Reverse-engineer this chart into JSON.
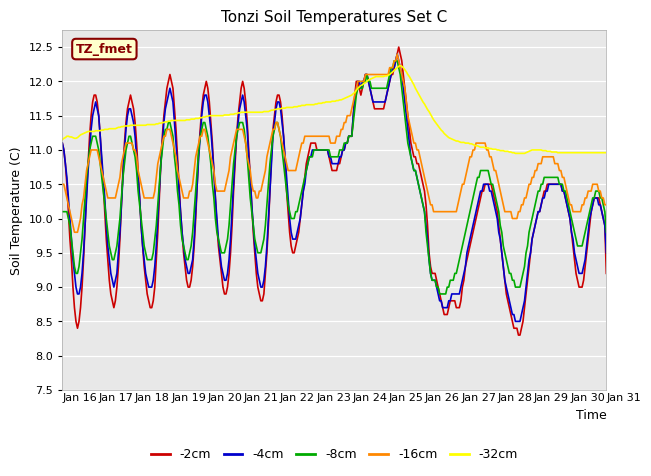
{
  "title": "Tonzi Soil Temperatures Set C",
  "xlabel": "Time",
  "ylabel": "Soil Temperature (C)",
  "ylim": [
    7.5,
    12.75
  ],
  "yticks": [
    7.5,
    8.0,
    8.5,
    9.0,
    9.5,
    10.0,
    10.5,
    11.0,
    11.5,
    12.0,
    12.5
  ],
  "xtick_labels": [
    "Jan 16",
    "Jan 17",
    "Jan 18",
    "Jan 19",
    "Jan 20",
    "Jan 21",
    "Jan 22",
    "Jan 23",
    "Jan 24",
    "Jan 25",
    "Jan 26",
    "Jan 27",
    "Jan 28",
    "Jan 29",
    "Jan 30",
    "Jan 31"
  ],
  "bg_color": "#e8e8e8",
  "legend_label_box": "TZ_fmet",
  "legend_box_color": "#ffffcc",
  "legend_box_edge": "#880000",
  "series_colors": [
    "#cc0000",
    "#0000cc",
    "#00aa00",
    "#ff8800",
    "#ffff00"
  ],
  "series_labels": [
    "-2cm",
    "-4cm",
    "-8cm",
    "-16cm",
    "-32cm"
  ],
  "line_width": 1.2,
  "n_points": 360,
  "t_2cm": [
    11.1,
    11.0,
    10.8,
    10.5,
    10.1,
    9.7,
    9.4,
    9.0,
    8.7,
    8.5,
    8.4,
    8.5,
    8.7,
    9.0,
    9.4,
    9.9,
    10.4,
    10.8,
    11.2,
    11.5,
    11.7,
    11.8,
    11.8,
    11.7,
    11.5,
    11.2,
    10.8,
    10.5,
    10.1,
    9.7,
    9.4,
    9.1,
    8.9,
    8.8,
    8.7,
    8.8,
    9.0,
    9.3,
    9.7,
    10.2,
    10.7,
    11.1,
    11.4,
    11.6,
    11.7,
    11.8,
    11.7,
    11.6,
    11.4,
    11.1,
    10.7,
    10.3,
    9.9,
    9.6,
    9.3,
    9.1,
    8.9,
    8.8,
    8.7,
    8.7,
    8.8,
    9.0,
    9.4,
    9.8,
    10.3,
    10.8,
    11.2,
    11.5,
    11.7,
    11.9,
    12.0,
    12.1,
    12.0,
    11.9,
    11.6,
    11.3,
    10.9,
    10.5,
    10.1,
    9.8,
    9.5,
    9.3,
    9.1,
    9.0,
    9.0,
    9.1,
    9.3,
    9.6,
    10.0,
    10.5,
    11.0,
    11.3,
    11.6,
    11.8,
    11.9,
    12.0,
    11.9,
    11.7,
    11.4,
    11.1,
    10.7,
    10.3,
    9.9,
    9.6,
    9.4,
    9.2,
    9.0,
    8.9,
    8.9,
    9.0,
    9.2,
    9.5,
    9.9,
    10.4,
    10.8,
    11.2,
    11.5,
    11.7,
    11.9,
    12.0,
    11.9,
    11.7,
    11.4,
    11.0,
    10.6,
    10.2,
    9.8,
    9.5,
    9.2,
    9.0,
    8.9,
    8.8,
    8.8,
    8.9,
    9.2,
    9.5,
    9.9,
    10.4,
    10.9,
    11.3,
    11.5,
    11.7,
    11.8,
    11.8,
    11.7,
    11.5,
    11.2,
    10.8,
    10.4,
    10.1,
    9.8,
    9.6,
    9.5,
    9.5,
    9.6,
    9.7,
    9.8,
    10.0,
    10.2,
    10.4,
    10.6,
    10.8,
    10.9,
    11.0,
    11.1,
    11.1,
    11.1,
    11.1,
    11.0,
    11.0,
    11.0,
    11.0,
    11.0,
    11.0,
    11.0,
    11.0,
    10.9,
    10.8,
    10.7,
    10.7,
    10.7,
    10.7,
    10.8,
    10.8,
    10.9,
    11.0,
    11.0,
    11.1,
    11.1,
    11.2,
    11.2,
    11.2,
    11.5,
    11.8,
    12.0,
    12.0,
    11.9,
    11.8,
    11.9,
    12.0,
    12.1,
    12.1,
    12.0,
    11.9,
    11.8,
    11.7,
    11.6,
    11.6,
    11.6,
    11.6,
    11.6,
    11.6,
    11.6,
    11.7,
    11.8,
    11.9,
    12.0,
    12.1,
    12.1,
    12.2,
    12.3,
    12.4,
    12.5,
    12.4,
    12.3,
    12.1,
    11.9,
    11.7,
    11.5,
    11.3,
    11.1,
    11.0,
    10.9,
    10.9,
    10.8,
    10.8,
    10.7,
    10.6,
    10.5,
    10.4,
    10.2,
    9.9,
    9.5,
    9.3,
    9.2,
    9.2,
    9.2,
    9.1,
    9.0,
    8.9,
    8.8,
    8.7,
    8.6,
    8.6,
    8.6,
    8.7,
    8.8,
    8.8,
    8.8,
    8.8,
    8.7,
    8.7,
    8.7,
    8.8,
    9.0,
    9.1,
    9.3,
    9.4,
    9.5,
    9.6,
    9.7,
    9.8,
    9.9,
    10.0,
    10.1,
    10.2,
    10.3,
    10.4,
    10.4,
    10.5,
    10.5,
    10.5,
    10.5,
    10.5,
    10.4,
    10.3,
    10.2,
    10.1,
    9.9,
    9.7,
    9.5,
    9.3,
    9.1,
    8.9,
    8.8,
    8.7,
    8.6,
    8.5,
    8.4,
    8.4,
    8.4,
    8.3,
    8.3,
    8.4,
    8.5,
    8.7,
    8.9,
    9.1,
    9.3,
    9.5,
    9.7,
    9.8,
    9.9,
    10.0,
    10.1,
    10.1,
    10.2,
    10.3,
    10.4,
    10.4,
    10.5,
    10.5,
    10.5,
    10.5,
    10.5,
    10.5,
    10.5,
    10.5,
    10.5,
    10.5,
    10.4,
    10.4,
    10.3,
    10.2,
    10.1,
    10.0,
    9.8,
    9.6,
    9.4,
    9.2,
    9.1,
    9.0,
    9.0,
    9.0,
    9.1,
    9.3,
    9.5,
    9.7,
    9.9,
    10.1,
    10.2,
    10.3,
    10.3,
    10.3,
    10.3,
    10.2,
    10.1,
    10.0,
    9.9,
    9.2
  ],
  "t_4cm": [
    11.1,
    11.0,
    10.8,
    10.6,
    10.3,
    10.0,
    9.7,
    9.4,
    9.2,
    9.0,
    8.9,
    8.9,
    9.0,
    9.2,
    9.5,
    9.9,
    10.3,
    10.7,
    11.0,
    11.3,
    11.5,
    11.6,
    11.7,
    11.6,
    11.5,
    11.2,
    10.9,
    10.6,
    10.3,
    9.9,
    9.6,
    9.4,
    9.2,
    9.1,
    9.0,
    9.1,
    9.2,
    9.5,
    9.8,
    10.2,
    10.6,
    11.0,
    11.3,
    11.5,
    11.6,
    11.6,
    11.5,
    11.4,
    11.2,
    10.9,
    10.6,
    10.3,
    9.9,
    9.6,
    9.4,
    9.2,
    9.1,
    9.0,
    9.0,
    9.0,
    9.1,
    9.3,
    9.6,
    10.0,
    10.4,
    10.8,
    11.1,
    11.4,
    11.6,
    11.7,
    11.8,
    11.9,
    11.8,
    11.7,
    11.4,
    11.1,
    10.8,
    10.4,
    10.1,
    9.8,
    9.6,
    9.4,
    9.3,
    9.2,
    9.2,
    9.3,
    9.4,
    9.7,
    10.1,
    10.5,
    10.9,
    11.2,
    11.5,
    11.7,
    11.8,
    11.8,
    11.7,
    11.5,
    11.3,
    11.0,
    10.7,
    10.3,
    10.0,
    9.7,
    9.5,
    9.3,
    9.2,
    9.1,
    9.1,
    9.2,
    9.4,
    9.7,
    10.1,
    10.5,
    10.9,
    11.2,
    11.4,
    11.6,
    11.7,
    11.8,
    11.7,
    11.5,
    11.3,
    10.9,
    10.6,
    10.2,
    9.9,
    9.6,
    9.4,
    9.2,
    9.1,
    9.0,
    9.0,
    9.1,
    9.3,
    9.6,
    10.0,
    10.4,
    10.8,
    11.2,
    11.4,
    11.6,
    11.7,
    11.7,
    11.6,
    11.4,
    11.2,
    10.9,
    10.6,
    10.3,
    10.0,
    9.8,
    9.7,
    9.7,
    9.7,
    9.8,
    9.9,
    10.0,
    10.2,
    10.4,
    10.5,
    10.7,
    10.8,
    10.9,
    10.9,
    11.0,
    11.0,
    11.0,
    11.0,
    11.0,
    11.0,
    11.0,
    11.0,
    11.0,
    11.0,
    11.0,
    10.9,
    10.9,
    10.8,
    10.8,
    10.8,
    10.8,
    10.8,
    10.9,
    10.9,
    11.0,
    11.0,
    11.1,
    11.1,
    11.2,
    11.2,
    11.2,
    11.5,
    11.7,
    11.9,
    12.0,
    12.0,
    11.9,
    12.0,
    12.0,
    12.1,
    12.1,
    12.0,
    11.9,
    11.8,
    11.7,
    11.7,
    11.7,
    11.7,
    11.7,
    11.7,
    11.7,
    11.7,
    11.7,
    11.8,
    11.9,
    12.0,
    12.1,
    12.2,
    12.2,
    12.3,
    12.4,
    12.3,
    12.2,
    12.1,
    11.9,
    11.7,
    11.5,
    11.3,
    11.1,
    10.9,
    10.8,
    10.7,
    10.7,
    10.6,
    10.5,
    10.4,
    10.3,
    10.2,
    10.1,
    9.9,
    9.7,
    9.4,
    9.2,
    9.1,
    9.1,
    9.1,
    9.0,
    8.9,
    8.8,
    8.8,
    8.7,
    8.7,
    8.7,
    8.7,
    8.8,
    8.8,
    8.9,
    8.9,
    8.9,
    8.9,
    8.9,
    8.9,
    9.0,
    9.1,
    9.2,
    9.3,
    9.5,
    9.6,
    9.7,
    9.8,
    9.9,
    10.0,
    10.1,
    10.2,
    10.3,
    10.4,
    10.4,
    10.5,
    10.5,
    10.5,
    10.5,
    10.4,
    10.4,
    10.3,
    10.2,
    10.1,
    10.0,
    9.8,
    9.7,
    9.5,
    9.3,
    9.1,
    9.0,
    8.9,
    8.8,
    8.7,
    8.6,
    8.6,
    8.5,
    8.5,
    8.5,
    8.5,
    8.6,
    8.7,
    8.8,
    9.0,
    9.2,
    9.4,
    9.5,
    9.7,
    9.8,
    9.9,
    10.0,
    10.1,
    10.1,
    10.2,
    10.3,
    10.3,
    10.4,
    10.4,
    10.5,
    10.5,
    10.5,
    10.5,
    10.5,
    10.5,
    10.5,
    10.5,
    10.5,
    10.4,
    10.4,
    10.3,
    10.2,
    10.1,
    10.0,
    9.8,
    9.7,
    9.5,
    9.4,
    9.3,
    9.2,
    9.2,
    9.2,
    9.3,
    9.4,
    9.6,
    9.8,
    10.0,
    10.1,
    10.2,
    10.3,
    10.3,
    10.3,
    10.2,
    10.2,
    10.1,
    10.0,
    9.9,
    9.5
  ],
  "t_8cm": [
    10.1,
    10.1,
    10.1,
    10.1,
    10.0,
    9.9,
    9.7,
    9.5,
    9.3,
    9.2,
    9.2,
    9.3,
    9.5,
    9.7,
    10.0,
    10.3,
    10.6,
    10.8,
    11.0,
    11.1,
    11.2,
    11.2,
    11.2,
    11.1,
    11.0,
    10.8,
    10.6,
    10.4,
    10.2,
    10.0,
    9.8,
    9.6,
    9.5,
    9.4,
    9.4,
    9.5,
    9.6,
    9.8,
    10.0,
    10.3,
    10.6,
    10.8,
    11.0,
    11.1,
    11.2,
    11.2,
    11.1,
    11.0,
    10.9,
    10.7,
    10.4,
    10.2,
    10.0,
    9.8,
    9.6,
    9.5,
    9.4,
    9.4,
    9.4,
    9.4,
    9.5,
    9.7,
    9.9,
    10.2,
    10.5,
    10.8,
    11.0,
    11.2,
    11.3,
    11.3,
    11.4,
    11.4,
    11.3,
    11.2,
    10.9,
    10.7,
    10.4,
    10.2,
    9.9,
    9.7,
    9.6,
    9.5,
    9.4,
    9.4,
    9.5,
    9.6,
    9.8,
    10.1,
    10.4,
    10.7,
    11.0,
    11.2,
    11.3,
    11.4,
    11.4,
    11.3,
    11.2,
    11.0,
    10.8,
    10.5,
    10.3,
    10.0,
    9.8,
    9.7,
    9.6,
    9.5,
    9.5,
    9.5,
    9.6,
    9.7,
    9.9,
    10.2,
    10.5,
    10.8,
    11.0,
    11.2,
    11.3,
    11.4,
    11.4,
    11.4,
    11.3,
    11.1,
    10.9,
    10.6,
    10.3,
    10.1,
    9.9,
    9.7,
    9.6,
    9.5,
    9.5,
    9.5,
    9.6,
    9.7,
    9.9,
    10.2,
    10.5,
    10.8,
    11.0,
    11.2,
    11.3,
    11.4,
    11.4,
    11.3,
    11.2,
    11.0,
    10.8,
    10.6,
    10.4,
    10.2,
    10.1,
    10.0,
    10.0,
    10.0,
    10.1,
    10.1,
    10.2,
    10.3,
    10.4,
    10.5,
    10.6,
    10.7,
    10.8,
    10.9,
    10.9,
    10.9,
    11.0,
    11.0,
    11.0,
    11.0,
    11.0,
    11.0,
    11.0,
    11.0,
    11.0,
    11.0,
    11.0,
    10.9,
    10.9,
    10.9,
    10.9,
    10.9,
    10.9,
    11.0,
    11.0,
    11.0,
    11.1,
    11.1,
    11.1,
    11.2,
    11.2,
    11.2,
    11.4,
    11.6,
    11.8,
    11.9,
    11.9,
    11.9,
    11.9,
    12.0,
    12.0,
    12.1,
    12.0,
    12.0,
    11.9,
    11.9,
    11.9,
    11.9,
    11.9,
    11.9,
    11.9,
    11.9,
    11.9,
    11.9,
    11.9,
    12.0,
    12.1,
    12.2,
    12.2,
    12.3,
    12.3,
    12.3,
    12.2,
    12.1,
    11.9,
    11.7,
    11.5,
    11.3,
    11.1,
    11.0,
    10.9,
    10.8,
    10.7,
    10.7,
    10.6,
    10.5,
    10.4,
    10.3,
    10.2,
    10.1,
    9.8,
    9.6,
    9.4,
    9.2,
    9.1,
    9.1,
    9.1,
    9.0,
    9.0,
    8.9,
    8.9,
    8.9,
    8.9,
    8.9,
    9.0,
    9.0,
    9.1,
    9.1,
    9.1,
    9.2,
    9.2,
    9.3,
    9.4,
    9.5,
    9.6,
    9.7,
    9.8,
    9.9,
    10.0,
    10.1,
    10.2,
    10.3,
    10.4,
    10.5,
    10.6,
    10.6,
    10.7,
    10.7,
    10.7,
    10.7,
    10.7,
    10.7,
    10.6,
    10.5,
    10.5,
    10.4,
    10.3,
    10.2,
    10.1,
    9.9,
    9.8,
    9.6,
    9.5,
    9.4,
    9.3,
    9.2,
    9.2,
    9.1,
    9.1,
    9.0,
    9.0,
    9.0,
    9.0,
    9.1,
    9.2,
    9.3,
    9.5,
    9.6,
    9.8,
    9.9,
    10.0,
    10.1,
    10.2,
    10.3,
    10.4,
    10.4,
    10.5,
    10.5,
    10.6,
    10.6,
    10.6,
    10.6,
    10.6,
    10.6,
    10.6,
    10.6,
    10.6,
    10.6,
    10.5,
    10.5,
    10.5,
    10.4,
    10.4,
    10.3,
    10.2,
    10.1,
    10.0,
    9.9,
    9.8,
    9.7,
    9.6,
    9.6,
    9.6,
    9.6,
    9.7,
    9.8,
    9.9,
    10.0,
    10.1,
    10.2,
    10.3,
    10.3,
    10.4,
    10.4,
    10.4,
    10.3,
    10.3,
    10.2,
    10.1,
    9.8
  ],
  "t_16cm": [
    10.5,
    10.5,
    10.4,
    10.3,
    10.2,
    10.1,
    10.0,
    9.9,
    9.8,
    9.8,
    9.8,
    9.9,
    10.0,
    10.2,
    10.3,
    10.5,
    10.7,
    10.8,
    10.9,
    11.0,
    11.0,
    11.0,
    11.0,
    11.0,
    10.9,
    10.8,
    10.7,
    10.6,
    10.5,
    10.4,
    10.3,
    10.3,
    10.3,
    10.3,
    10.3,
    10.3,
    10.4,
    10.5,
    10.6,
    10.8,
    10.9,
    11.0,
    11.1,
    11.1,
    11.1,
    11.1,
    11.1,
    11.0,
    11.0,
    10.9,
    10.7,
    10.6,
    10.5,
    10.4,
    10.3,
    10.3,
    10.3,
    10.3,
    10.3,
    10.3,
    10.3,
    10.4,
    10.6,
    10.8,
    10.9,
    11.0,
    11.1,
    11.2,
    11.2,
    11.3,
    11.3,
    11.3,
    11.2,
    11.1,
    11.0,
    10.9,
    10.7,
    10.6,
    10.5,
    10.4,
    10.3,
    10.3,
    10.3,
    10.3,
    10.4,
    10.4,
    10.5,
    10.7,
    10.9,
    11.0,
    11.1,
    11.2,
    11.2,
    11.3,
    11.3,
    11.2,
    11.1,
    11.0,
    10.9,
    10.8,
    10.7,
    10.5,
    10.4,
    10.4,
    10.4,
    10.4,
    10.4,
    10.4,
    10.5,
    10.6,
    10.7,
    10.9,
    11.0,
    11.1,
    11.2,
    11.3,
    11.3,
    11.3,
    11.3,
    11.3,
    11.2,
    11.1,
    10.9,
    10.8,
    10.7,
    10.5,
    10.4,
    10.4,
    10.3,
    10.3,
    10.4,
    10.4,
    10.5,
    10.6,
    10.7,
    10.9,
    11.0,
    11.1,
    11.2,
    11.3,
    11.3,
    11.4,
    11.4,
    11.3,
    11.2,
    11.1,
    11.0,
    10.9,
    10.8,
    10.7,
    10.7,
    10.7,
    10.7,
    10.7,
    10.7,
    10.8,
    10.9,
    11.0,
    11.1,
    11.1,
    11.2,
    11.2,
    11.2,
    11.2,
    11.2,
    11.2,
    11.2,
    11.2,
    11.2,
    11.2,
    11.2,
    11.2,
    11.2,
    11.2,
    11.2,
    11.2,
    11.2,
    11.1,
    11.1,
    11.1,
    11.1,
    11.2,
    11.2,
    11.2,
    11.3,
    11.3,
    11.4,
    11.4,
    11.5,
    11.5,
    11.5,
    11.6,
    11.7,
    11.8,
    11.9,
    12.0,
    12.0,
    12.0,
    12.0,
    12.0,
    12.1,
    12.1,
    12.1,
    12.1,
    12.1,
    12.1,
    12.1,
    12.1,
    12.1,
    12.1,
    12.1,
    12.1,
    12.1,
    12.1,
    12.1,
    12.1,
    12.2,
    12.2,
    12.2,
    12.3,
    12.3,
    12.4,
    12.3,
    12.2,
    12.1,
    12.0,
    11.9,
    11.7,
    11.5,
    11.4,
    11.3,
    11.2,
    11.1,
    11.1,
    11.0,
    11.0,
    10.9,
    10.8,
    10.7,
    10.6,
    10.5,
    10.4,
    10.3,
    10.2,
    10.2,
    10.1,
    10.1,
    10.1,
    10.1,
    10.1,
    10.1,
    10.1,
    10.1,
    10.1,
    10.1,
    10.1,
    10.1,
    10.1,
    10.1,
    10.1,
    10.1,
    10.2,
    10.3,
    10.4,
    10.5,
    10.5,
    10.6,
    10.7,
    10.8,
    10.9,
    10.9,
    11.0,
    11.0,
    11.1,
    11.1,
    11.1,
    11.1,
    11.1,
    11.1,
    11.1,
    11.0,
    11.0,
    10.9,
    10.9,
    10.8,
    10.7,
    10.7,
    10.6,
    10.5,
    10.4,
    10.3,
    10.2,
    10.1,
    10.1,
    10.1,
    10.1,
    10.1,
    10.0,
    10.0,
    10.0,
    10.0,
    10.1,
    10.1,
    10.2,
    10.2,
    10.3,
    10.3,
    10.4,
    10.5,
    10.5,
    10.6,
    10.6,
    10.7,
    10.7,
    10.8,
    10.8,
    10.8,
    10.9,
    10.9,
    10.9,
    10.9,
    10.9,
    10.9,
    10.9,
    10.9,
    10.8,
    10.8,
    10.8,
    10.7,
    10.7,
    10.6,
    10.6,
    10.5,
    10.4,
    10.3,
    10.2,
    10.2,
    10.1,
    10.1,
    10.1,
    10.1,
    10.1,
    10.1,
    10.2,
    10.2,
    10.3,
    10.3,
    10.4,
    10.4,
    10.4,
    10.5,
    10.5,
    10.5,
    10.5,
    10.4,
    10.4,
    10.3,
    10.3,
    10.2,
    10.2
  ],
  "t_32cm": [
    11.15,
    11.17,
    11.18,
    11.2,
    11.2,
    11.19,
    11.19,
    11.18,
    11.17,
    11.17,
    11.18,
    11.2,
    11.22,
    11.23,
    11.24,
    11.25,
    11.26,
    11.27,
    11.27,
    11.27,
    11.27,
    11.27,
    11.28,
    11.28,
    11.28,
    11.28,
    11.29,
    11.29,
    11.3,
    11.3,
    11.3,
    11.31,
    11.31,
    11.31,
    11.31,
    11.31,
    11.32,
    11.33,
    11.33,
    11.34,
    11.34,
    11.35,
    11.35,
    11.35,
    11.35,
    11.36,
    11.36,
    11.36,
    11.36,
    11.36,
    11.36,
    11.36,
    11.36,
    11.36,
    11.36,
    11.36,
    11.37,
    11.37,
    11.37,
    11.37,
    11.37,
    11.37,
    11.38,
    11.38,
    11.39,
    11.39,
    11.4,
    11.4,
    11.41,
    11.41,
    11.42,
    11.42,
    11.43,
    11.43,
    11.43,
    11.43,
    11.43,
    11.43,
    11.43,
    11.43,
    11.43,
    11.43,
    11.44,
    11.44,
    11.44,
    11.45,
    11.45,
    11.45,
    11.46,
    11.46,
    11.46,
    11.47,
    11.47,
    11.48,
    11.48,
    11.49,
    11.49,
    11.5,
    11.5,
    11.5,
    11.5,
    11.5,
    11.5,
    11.5,
    11.5,
    11.5,
    11.5,
    11.51,
    11.51,
    11.51,
    11.51,
    11.52,
    11.52,
    11.52,
    11.53,
    11.53,
    11.54,
    11.54,
    11.55,
    11.55,
    11.55,
    11.55,
    11.55,
    11.55,
    11.55,
    11.55,
    11.55,
    11.55,
    11.55,
    11.55,
    11.55,
    11.55,
    11.55,
    11.56,
    11.56,
    11.56,
    11.56,
    11.57,
    11.58,
    11.58,
    11.59,
    11.59,
    11.6,
    11.6,
    11.6,
    11.61,
    11.61,
    11.61,
    11.62,
    11.62,
    11.62,
    11.62,
    11.62,
    11.63,
    11.63,
    11.63,
    11.64,
    11.64,
    11.65,
    11.65,
    11.65,
    11.66,
    11.66,
    11.66,
    11.66,
    11.66,
    11.66,
    11.67,
    11.67,
    11.68,
    11.68,
    11.68,
    11.69,
    11.69,
    11.7,
    11.7,
    11.7,
    11.7,
    11.71,
    11.71,
    11.71,
    11.72,
    11.72,
    11.73,
    11.73,
    11.74,
    11.75,
    11.76,
    11.77,
    11.78,
    11.79,
    11.8,
    11.82,
    11.84,
    11.87,
    11.9,
    11.92,
    11.94,
    11.95,
    11.97,
    11.98,
    12.0,
    12.02,
    12.03,
    12.04,
    12.05,
    12.06,
    12.07,
    12.07,
    12.07,
    12.07,
    12.07,
    12.07,
    12.08,
    12.08,
    12.09,
    12.1,
    12.12,
    12.14,
    12.16,
    12.18,
    12.2,
    12.22,
    12.23,
    12.22,
    12.2,
    12.17,
    12.14,
    12.1,
    12.07,
    12.03,
    11.99,
    11.95,
    11.9,
    11.86,
    11.82,
    11.78,
    11.74,
    11.7,
    11.67,
    11.63,
    11.59,
    11.56,
    11.52,
    11.48,
    11.44,
    11.41,
    11.38,
    11.35,
    11.32,
    11.29,
    11.27,
    11.24,
    11.22,
    11.2,
    11.18,
    11.17,
    11.16,
    11.15,
    11.14,
    11.13,
    11.13,
    11.12,
    11.11,
    11.11,
    11.11,
    11.1,
    11.1,
    11.1,
    11.09,
    11.09,
    11.08,
    11.07,
    11.06,
    11.06,
    11.05,
    11.04,
    11.04,
    11.04,
    11.03,
    11.03,
    11.03,
    11.02,
    11.02,
    11.01,
    11.01,
    11.01,
    11.0,
    11.0,
    10.99,
    10.99,
    10.99,
    10.98,
    10.98,
    10.98,
    10.97,
    10.97,
    10.96,
    10.96,
    10.95,
    10.95,
    10.95,
    10.95,
    10.95,
    10.95,
    10.95,
    10.96,
    10.97,
    10.98,
    10.99,
    11.0,
    11.0,
    11.0,
    11.0,
    11.0,
    11.0,
    11.0,
    10.99,
    10.99,
    10.99,
    10.98,
    10.98,
    10.98,
    10.97,
    10.97,
    10.97,
    10.97,
    10.96,
    10.96,
    10.96,
    10.96,
    10.96,
    10.96,
    10.96,
    10.96,
    10.96,
    10.96,
    10.96,
    10.96,
    10.96,
    10.96,
    10.96,
    10.96,
    10.96,
    10.96,
    10.96,
    10.96,
    10.96,
    10.96,
    10.96,
    10.96,
    10.96,
    10.96,
    10.96,
    10.96,
    10.96,
    10.96,
    10.96,
    10.96,
    10.96
  ]
}
